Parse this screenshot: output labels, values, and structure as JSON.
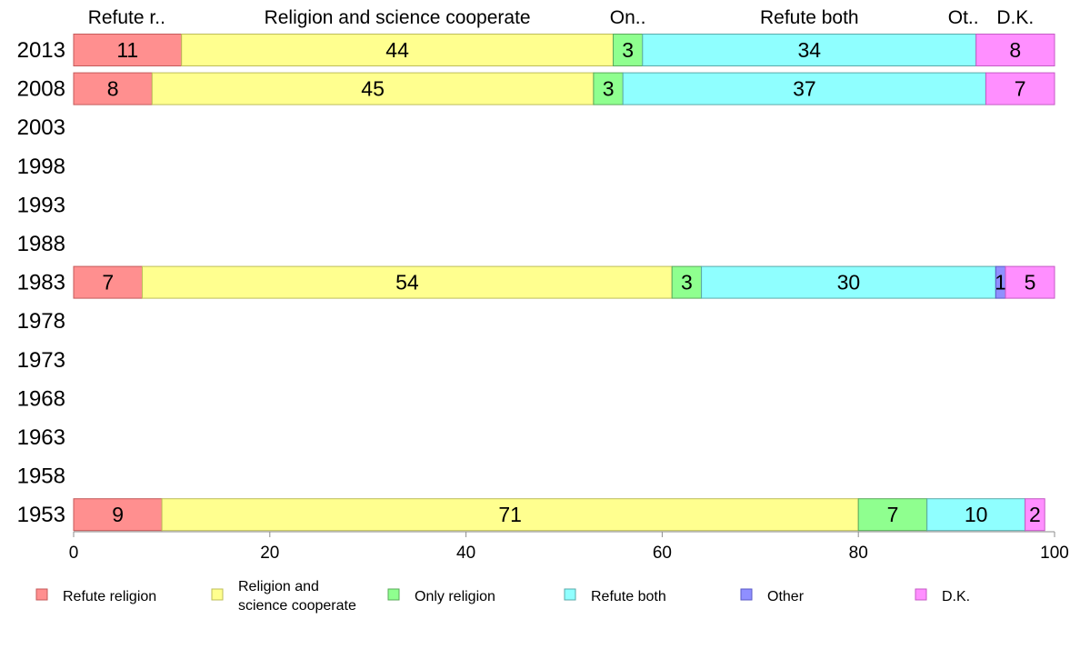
{
  "chart_data": {
    "type": "bar",
    "orientation": "horizontal",
    "stacked": true,
    "categories": [
      "2013",
      "2008",
      "2003",
      "1998",
      "1993",
      "1988",
      "1983",
      "1978",
      "1973",
      "1968",
      "1963",
      "1958",
      "1953"
    ],
    "xlim": [
      0,
      100
    ],
    "xticks": [
      0,
      20,
      40,
      60,
      80,
      100
    ],
    "grid": false,
    "legend_position": "bottom",
    "top_labels": [
      "Refute r..",
      "Religion and science cooperate",
      "On..",
      "Refute both",
      "Ot..",
      "D.K."
    ],
    "series": [
      {
        "name": "Refute religion",
        "legend_lines": [
          "Refute religion"
        ],
        "color": "#FF8F8F",
        "border": "#C45A5A",
        "values": [
          11,
          8,
          null,
          null,
          null,
          null,
          7,
          null,
          null,
          null,
          null,
          null,
          9
        ]
      },
      {
        "name": "Religion and science cooperate",
        "legend_lines": [
          "Religion and",
          "science cooperate"
        ],
        "color": "#FFFF8F",
        "border": "#BDBD5A",
        "values": [
          44,
          45,
          null,
          null,
          null,
          null,
          54,
          null,
          null,
          null,
          null,
          null,
          71
        ]
      },
      {
        "name": "Only religion",
        "legend_lines": [
          "Only religion"
        ],
        "color": "#8FFF8F",
        "border": "#5AAA5A",
        "values": [
          3,
          3,
          null,
          null,
          null,
          null,
          3,
          null,
          null,
          null,
          null,
          null,
          7
        ]
      },
      {
        "name": "Refute both",
        "legend_lines": [
          "Refute both"
        ],
        "color": "#8FFFFF",
        "border": "#5AAAAA",
        "values": [
          34,
          37,
          null,
          null,
          null,
          null,
          30,
          null,
          null,
          null,
          null,
          null,
          10
        ]
      },
      {
        "name": "Other",
        "legend_lines": [
          "Other"
        ],
        "color": "#8F8FFF",
        "border": "#5A5AC4",
        "values": [
          0,
          0,
          null,
          null,
          null,
          null,
          1,
          null,
          null,
          null,
          null,
          null,
          0
        ]
      },
      {
        "name": "D.K.",
        "legend_lines": [
          "D.K."
        ],
        "color": "#FF8FFF",
        "border": "#C45AC4",
        "values": [
          8,
          7,
          null,
          null,
          null,
          null,
          5,
          null,
          null,
          null,
          null,
          null,
          2
        ]
      }
    ]
  }
}
